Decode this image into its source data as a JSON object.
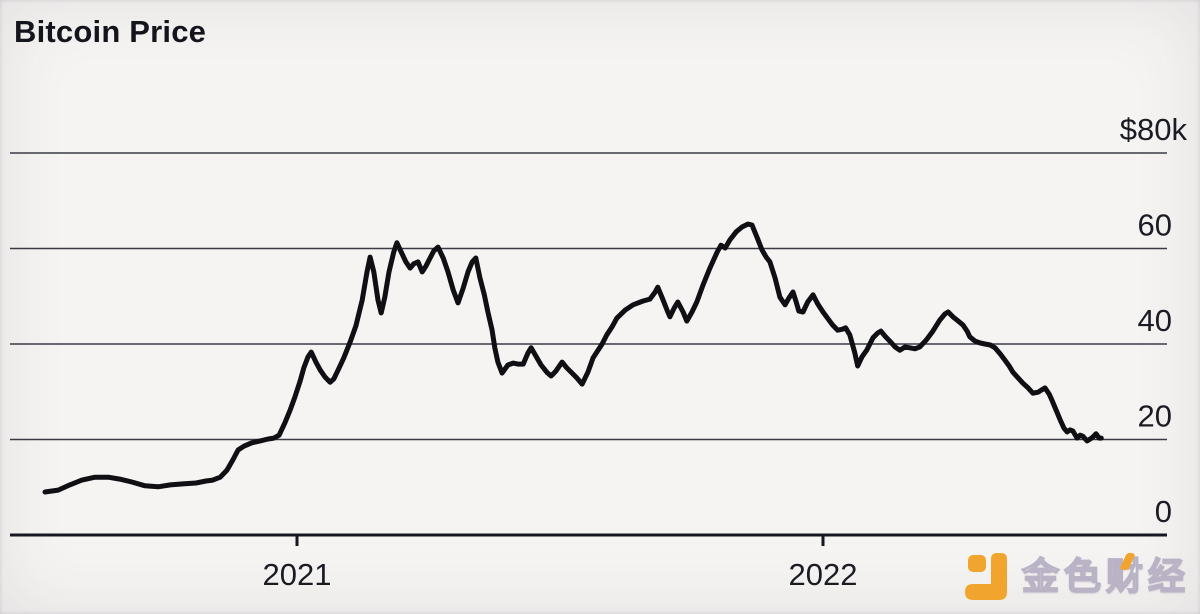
{
  "page": {
    "background": "#f5f4f2",
    "ink": "#16161e"
  },
  "header": {
    "title": "Bitcoin Price"
  },
  "watermark": {
    "brand_text": "金色财经",
    "brand_color": "#F2A52E",
    "icon": "jinse-logo-icon"
  },
  "chart_data": {
    "type": "line",
    "title": "Bitcoin Price",
    "xlabel": "",
    "ylabel": "",
    "legend": "none",
    "grid": "horizontal-only",
    "line_color": "#0f0f14",
    "grid_color": "#3a3a45",
    "axis_color": "#17171f",
    "label_color": "#1b1b24",
    "ylim": [
      0,
      80
    ],
    "xlim_years": [
      2020.45,
      2022.66
    ],
    "x_ticks": [
      {
        "label": "2021",
        "value": 2021
      },
      {
        "label": "2022",
        "value": 2022
      }
    ],
    "y_gridlines": [
      {
        "label": "$80k",
        "value": 80
      },
      {
        "label": "60",
        "value": 60
      },
      {
        "label": "40",
        "value": 40
      },
      {
        "label": "20",
        "value": 20
      },
      {
        "label": "0",
        "value": 0
      }
    ],
    "series": [
      {
        "name": "Bitcoin price (thousand USD)",
        "points": [
          [
            2020.521,
            9.0
          ],
          [
            2020.546,
            9.4
          ],
          [
            2020.568,
            10.5
          ],
          [
            2020.591,
            11.5
          ],
          [
            2020.616,
            12.1
          ],
          [
            2020.641,
            12.1
          ],
          [
            2020.663,
            11.7
          ],
          [
            2020.686,
            11.1
          ],
          [
            2020.711,
            10.3
          ],
          [
            2020.736,
            10.1
          ],
          [
            2020.759,
            10.5
          ],
          [
            2020.783,
            10.7
          ],
          [
            2020.808,
            10.9
          ],
          [
            2020.827,
            11.3
          ],
          [
            2020.84,
            11.5
          ],
          [
            2020.854,
            12.1
          ],
          [
            2020.867,
            13.6
          ],
          [
            2020.878,
            15.7
          ],
          [
            2020.888,
            17.8
          ],
          [
            2020.899,
            18.6
          ],
          [
            2020.914,
            19.3
          ],
          [
            2020.93,
            19.7
          ],
          [
            2020.945,
            20.1
          ],
          [
            2020.956,
            20.3
          ],
          [
            2020.966,
            20.9
          ],
          [
            2020.977,
            23.5
          ],
          [
            2020.987,
            26.2
          ],
          [
            2020.996,
            28.9
          ],
          [
            2021.006,
            32.3
          ],
          [
            2021.013,
            35.0
          ],
          [
            2021.021,
            37.3
          ],
          [
            2021.027,
            38.3
          ],
          [
            2021.036,
            36.2
          ],
          [
            2021.044,
            34.6
          ],
          [
            2021.053,
            33.1
          ],
          [
            2021.063,
            32.0
          ],
          [
            2021.07,
            32.7
          ],
          [
            2021.08,
            35.0
          ],
          [
            2021.089,
            37.1
          ],
          [
            2021.101,
            40.4
          ],
          [
            2021.112,
            43.8
          ],
          [
            2021.124,
            49.2
          ],
          [
            2021.133,
            55.1
          ],
          [
            2021.139,
            58.2
          ],
          [
            2021.146,
            55.1
          ],
          [
            2021.154,
            49.2
          ],
          [
            2021.16,
            46.5
          ],
          [
            2021.167,
            49.8
          ],
          [
            2021.175,
            55.1
          ],
          [
            2021.184,
            59.3
          ],
          [
            2021.19,
            61.2
          ],
          [
            2021.198,
            59.3
          ],
          [
            2021.207,
            57.2
          ],
          [
            2021.215,
            55.9
          ],
          [
            2021.222,
            56.8
          ],
          [
            2021.23,
            57.2
          ],
          [
            2021.238,
            55.1
          ],
          [
            2021.245,
            56.3
          ],
          [
            2021.253,
            58.0
          ],
          [
            2021.26,
            59.5
          ],
          [
            2021.268,
            60.3
          ],
          [
            2021.278,
            58.0
          ],
          [
            2021.287,
            55.1
          ],
          [
            2021.297,
            51.3
          ],
          [
            2021.306,
            48.6
          ],
          [
            2021.316,
            51.7
          ],
          [
            2021.325,
            55.1
          ],
          [
            2021.333,
            57.2
          ],
          [
            2021.34,
            58.0
          ],
          [
            2021.348,
            53.8
          ],
          [
            2021.356,
            50.3
          ],
          [
            2021.363,
            46.7
          ],
          [
            2021.371,
            42.9
          ],
          [
            2021.376,
            39.2
          ],
          [
            2021.382,
            36.2
          ],
          [
            2021.39,
            33.9
          ],
          [
            2021.401,
            35.6
          ],
          [
            2021.411,
            36.0
          ],
          [
            2021.42,
            35.8
          ],
          [
            2021.43,
            35.8
          ],
          [
            2021.439,
            38.1
          ],
          [
            2021.445,
            39.2
          ],
          [
            2021.454,
            37.5
          ],
          [
            2021.464,
            35.6
          ],
          [
            2021.475,
            34.1
          ],
          [
            2021.483,
            33.3
          ],
          [
            2021.492,
            34.3
          ],
          [
            2021.504,
            36.2
          ],
          [
            2021.513,
            35.0
          ],
          [
            2021.523,
            33.9
          ],
          [
            2021.532,
            32.9
          ],
          [
            2021.542,
            31.6
          ],
          [
            2021.553,
            34.1
          ],
          [
            2021.563,
            37.1
          ],
          [
            2021.57,
            38.3
          ],
          [
            2021.58,
            40.0
          ],
          [
            2021.589,
            41.9
          ],
          [
            2021.599,
            43.6
          ],
          [
            2021.608,
            45.4
          ],
          [
            2021.624,
            47.1
          ],
          [
            2021.639,
            48.2
          ],
          [
            2021.658,
            49.0
          ],
          [
            2021.671,
            49.4
          ],
          [
            2021.681,
            50.9
          ],
          [
            2021.686,
            51.9
          ],
          [
            2021.696,
            49.2
          ],
          [
            2021.705,
            46.7
          ],
          [
            2021.709,
            45.7
          ],
          [
            2021.717,
            47.5
          ],
          [
            2021.724,
            48.8
          ],
          [
            2021.734,
            46.7
          ],
          [
            2021.741,
            44.8
          ],
          [
            2021.751,
            46.7
          ],
          [
            2021.76,
            48.8
          ],
          [
            2021.772,
            52.4
          ],
          [
            2021.785,
            55.9
          ],
          [
            2021.799,
            59.3
          ],
          [
            2021.806,
            60.7
          ],
          [
            2021.814,
            60.1
          ],
          [
            2021.823,
            61.8
          ],
          [
            2021.835,
            63.5
          ],
          [
            2021.846,
            64.5
          ],
          [
            2021.857,
            65.1
          ],
          [
            2021.865,
            64.9
          ],
          [
            2021.875,
            62.2
          ],
          [
            2021.884,
            59.7
          ],
          [
            2021.892,
            58.2
          ],
          [
            2021.899,
            57.2
          ],
          [
            2021.909,
            53.8
          ],
          [
            2021.918,
            49.8
          ],
          [
            2021.928,
            48.2
          ],
          [
            2021.935,
            49.6
          ],
          [
            2021.943,
            50.9
          ],
          [
            2021.949,
            48.8
          ],
          [
            2021.954,
            46.9
          ],
          [
            2021.962,
            46.7
          ],
          [
            2021.971,
            48.8
          ],
          [
            2021.981,
            50.3
          ],
          [
            2021.99,
            48.4
          ],
          [
            2022.0,
            46.7
          ],
          [
            2022.01,
            45.2
          ],
          [
            2022.018,
            44.0
          ],
          [
            2022.028,
            42.9
          ],
          [
            2022.037,
            43.1
          ],
          [
            2022.043,
            43.4
          ],
          [
            2022.051,
            41.9
          ],
          [
            2022.06,
            38.3
          ],
          [
            2022.066,
            35.4
          ],
          [
            2022.074,
            37.3
          ],
          [
            2022.083,
            38.7
          ],
          [
            2022.095,
            41.3
          ],
          [
            2022.104,
            42.3
          ],
          [
            2022.11,
            42.7
          ],
          [
            2022.119,
            41.5
          ],
          [
            2022.127,
            40.6
          ],
          [
            2022.137,
            39.4
          ],
          [
            2022.146,
            38.7
          ],
          [
            2022.156,
            39.4
          ],
          [
            2022.165,
            39.2
          ],
          [
            2022.175,
            39.0
          ],
          [
            2022.184,
            39.4
          ],
          [
            2022.196,
            40.8
          ],
          [
            2022.209,
            42.7
          ],
          [
            2022.222,
            45.0
          ],
          [
            2022.232,
            46.3
          ],
          [
            2022.238,
            46.7
          ],
          [
            2022.247,
            45.7
          ],
          [
            2022.257,
            44.8
          ],
          [
            2022.266,
            44.0
          ],
          [
            2022.274,
            42.7
          ],
          [
            2022.279,
            41.5
          ],
          [
            2022.289,
            40.6
          ],
          [
            2022.299,
            40.2
          ],
          [
            2022.308,
            40.0
          ],
          [
            2022.318,
            39.8
          ],
          [
            2022.327,
            39.2
          ],
          [
            2022.337,
            37.9
          ],
          [
            2022.346,
            36.6
          ],
          [
            2022.354,
            35.4
          ],
          [
            2022.361,
            34.1
          ],
          [
            2022.371,
            32.9
          ],
          [
            2022.38,
            31.8
          ],
          [
            2022.39,
            30.8
          ],
          [
            2022.399,
            29.7
          ],
          [
            2022.409,
            29.9
          ],
          [
            2022.416,
            30.4
          ],
          [
            2022.422,
            30.8
          ],
          [
            2022.43,
            29.5
          ],
          [
            2022.435,
            28.3
          ],
          [
            2022.443,
            26.2
          ],
          [
            2022.451,
            24.1
          ],
          [
            2022.458,
            22.4
          ],
          [
            2022.464,
            21.6
          ],
          [
            2022.47,
            22.0
          ],
          [
            2022.475,
            21.8
          ],
          [
            2022.483,
            20.3
          ],
          [
            2022.489,
            20.9
          ],
          [
            2022.494,
            20.7
          ],
          [
            2022.502,
            19.7
          ],
          [
            2022.508,
            20.1
          ],
          [
            2022.513,
            20.5
          ],
          [
            2022.519,
            21.2
          ],
          [
            2022.525,
            20.3
          ],
          [
            2022.529,
            20.3
          ]
        ]
      }
    ]
  }
}
